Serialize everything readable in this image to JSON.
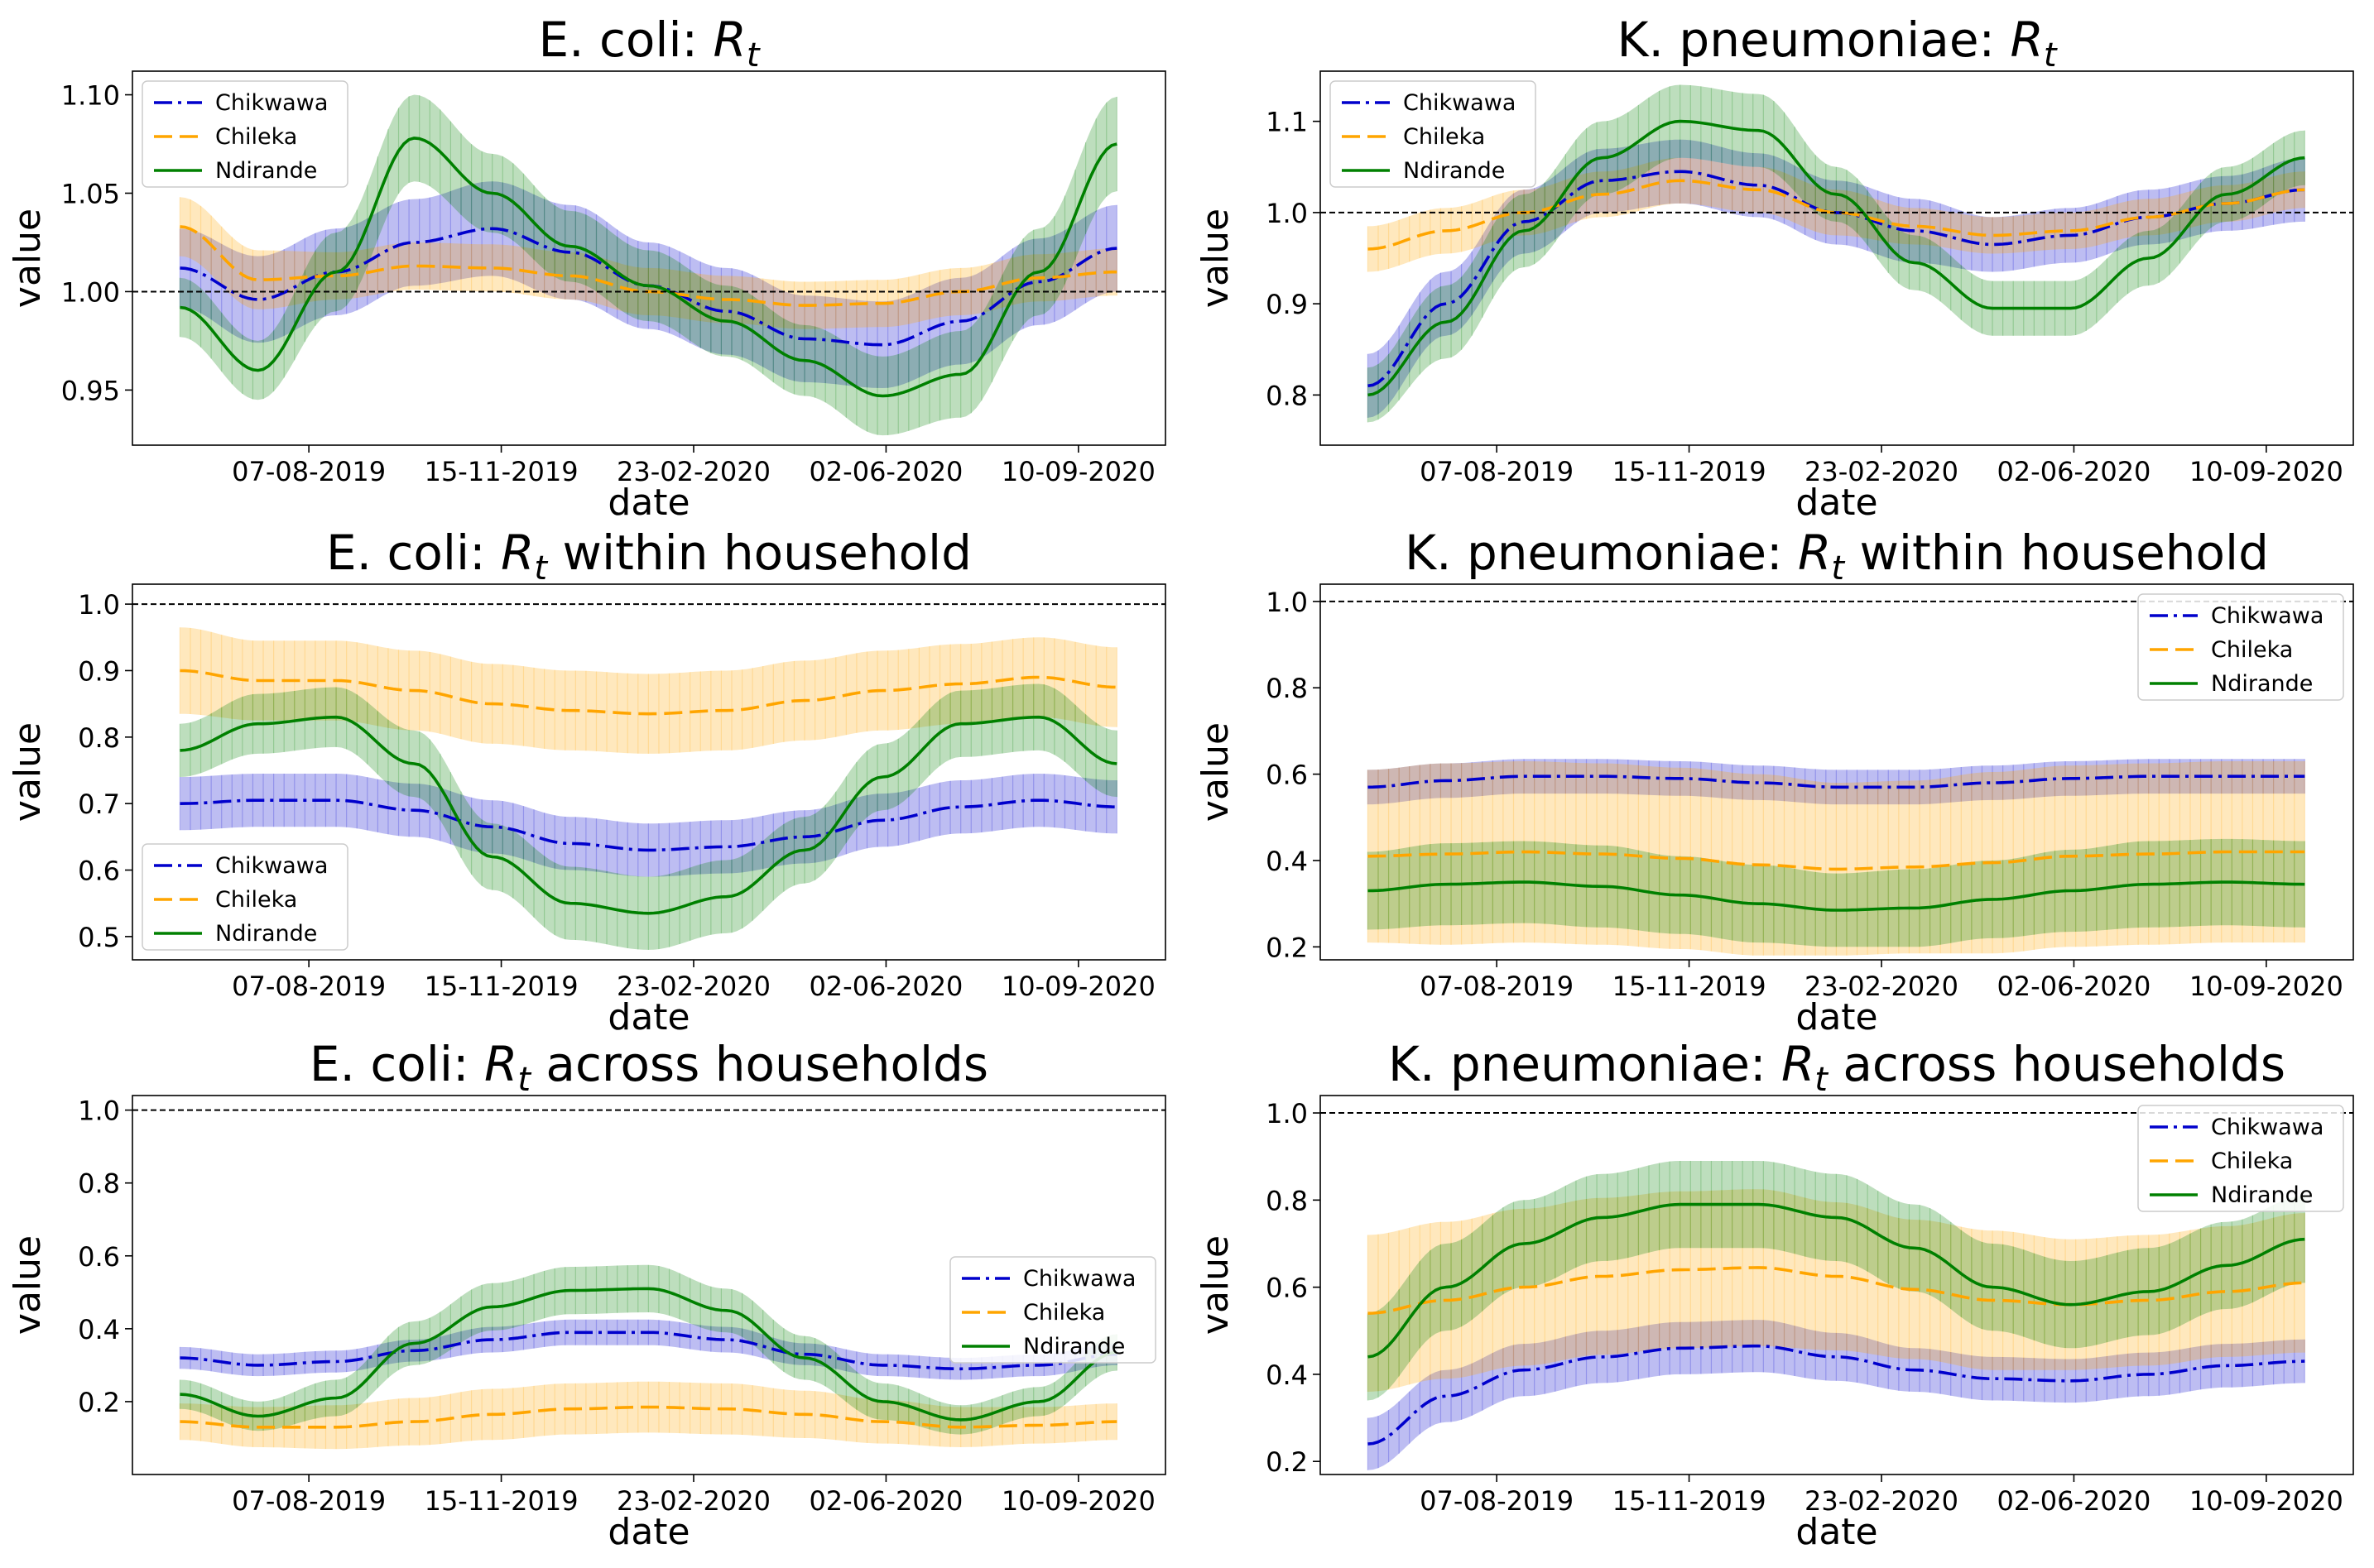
{
  "chart_data": [
    {
      "type": "line",
      "title": {
        "prefix": "E. coli: ",
        "var": "R",
        "sub": "t",
        "suffix": ""
      },
      "xlabel": "date",
      "ylabel": "value",
      "x_ticks": [
        "07-08-2019",
        "15-11-2019",
        "23-02-2020",
        "02-06-2020",
        "10-09-2020"
      ],
      "x_start": "2019-06-01",
      "x_end": "2020-09-30",
      "ylim": [
        0.922,
        1.112
      ],
      "y_ticks": [
        0.95,
        1.0,
        1.05,
        1.1
      ],
      "reference_line": 1.0,
      "legend_loc": "upper-left",
      "series": [
        {
          "name": "Chikwawa",
          "color": "#0000cc",
          "dash": "dashdot",
          "values": [
            1.012,
            0.996,
            1.01,
            1.025,
            1.032,
            1.02,
            1.003,
            0.99,
            0.976,
            0.973,
            0.985,
            1.005,
            1.022
          ],
          "band": [
            0.02,
            0.022,
            0.022,
            0.022,
            0.024,
            0.024,
            0.022,
            0.022,
            0.022,
            0.022,
            0.022,
            0.022,
            0.022
          ]
        },
        {
          "name": "Chileka",
          "color": "#ffa500",
          "dash": "dashed",
          "values": [
            1.033,
            1.006,
            1.008,
            1.013,
            1.012,
            1.008,
            1.0,
            0.996,
            0.993,
            0.994,
            1.0,
            1.007,
            1.01
          ],
          "band": [
            0.015,
            0.015,
            0.012,
            0.012,
            0.012,
            0.012,
            0.012,
            0.012,
            0.012,
            0.012,
            0.012,
            0.012,
            0.012
          ]
        },
        {
          "name": "Ndirande",
          "color": "#008000",
          "dash": "solid",
          "values": [
            0.992,
            0.96,
            1.01,
            1.078,
            1.05,
            1.023,
            1.003,
            0.985,
            0.965,
            0.947,
            0.958,
            1.01,
            1.075
          ],
          "band": [
            0.015,
            0.015,
            0.02,
            0.022,
            0.02,
            0.018,
            0.018,
            0.018,
            0.018,
            0.02,
            0.022,
            0.022,
            0.024
          ]
        }
      ]
    },
    {
      "type": "line",
      "title": {
        "prefix": "K. pneumoniae: ",
        "var": "R",
        "sub": "t",
        "suffix": ""
      },
      "xlabel": "date",
      "ylabel": "value",
      "x_ticks": [
        "07-08-2019",
        "15-11-2019",
        "23-02-2020",
        "02-06-2020",
        "10-09-2020"
      ],
      "x_start": "2019-06-01",
      "x_end": "2020-09-30",
      "ylim": [
        0.745,
        1.155
      ],
      "y_ticks": [
        0.8,
        0.9,
        1.0,
        1.1
      ],
      "reference_line": 1.0,
      "legend_loc": "upper-left",
      "series": [
        {
          "name": "Chikwawa",
          "color": "#0000cc",
          "dash": "dashdot",
          "values": [
            0.81,
            0.9,
            0.99,
            1.035,
            1.045,
            1.03,
            1.0,
            0.98,
            0.965,
            0.975,
            0.995,
            1.01,
            1.025
          ],
          "band": [
            0.035,
            0.035,
            0.035,
            0.035,
            0.035,
            0.035,
            0.035,
            0.035,
            0.03,
            0.03,
            0.03,
            0.03,
            0.035
          ]
        },
        {
          "name": "Chileka",
          "color": "#ffa500",
          "dash": "dashed",
          "values": [
            0.96,
            0.98,
            1.0,
            1.02,
            1.035,
            1.025,
            1.0,
            0.985,
            0.975,
            0.98,
            0.995,
            1.01,
            1.025
          ],
          "band": [
            0.025,
            0.025,
            0.025,
            0.025,
            0.025,
            0.025,
            0.025,
            0.02,
            0.02,
            0.02,
            0.02,
            0.02,
            0.02
          ]
        },
        {
          "name": "Ndirande",
          "color": "#008000",
          "dash": "solid",
          "values": [
            0.8,
            0.88,
            0.98,
            1.06,
            1.1,
            1.09,
            1.02,
            0.945,
            0.895,
            0.895,
            0.95,
            1.02,
            1.06
          ],
          "band": [
            0.03,
            0.04,
            0.04,
            0.04,
            0.04,
            0.04,
            0.03,
            0.03,
            0.03,
            0.03,
            0.03,
            0.03,
            0.03
          ]
        }
      ]
    },
    {
      "type": "line",
      "title": {
        "prefix": "E. coli: ",
        "var": "R",
        "sub": "t",
        "suffix": " within household"
      },
      "xlabel": "date",
      "ylabel": "value",
      "x_ticks": [
        "07-08-2019",
        "15-11-2019",
        "23-02-2020",
        "02-06-2020",
        "10-09-2020"
      ],
      "x_start": "2019-06-01",
      "x_end": "2020-09-30",
      "ylim": [
        0.465,
        1.03
      ],
      "y_ticks": [
        0.5,
        0.6,
        0.7,
        0.8,
        0.9,
        1.0
      ],
      "reference_line": 1.0,
      "legend_loc": "lower-left",
      "series": [
        {
          "name": "Chikwawa",
          "color": "#0000cc",
          "dash": "dashdot",
          "values": [
            0.7,
            0.705,
            0.705,
            0.69,
            0.665,
            0.64,
            0.63,
            0.635,
            0.65,
            0.675,
            0.695,
            0.705,
            0.695
          ],
          "band": [
            0.04,
            0.04,
            0.04,
            0.04,
            0.04,
            0.04,
            0.04,
            0.04,
            0.04,
            0.04,
            0.04,
            0.04,
            0.04
          ]
        },
        {
          "name": "Chileka",
          "color": "#ffa500",
          "dash": "dashed",
          "values": [
            0.9,
            0.885,
            0.885,
            0.87,
            0.85,
            0.84,
            0.835,
            0.84,
            0.855,
            0.87,
            0.88,
            0.89,
            0.875
          ],
          "band": [
            0.065,
            0.06,
            0.06,
            0.06,
            0.06,
            0.06,
            0.06,
            0.06,
            0.06,
            0.06,
            0.06,
            0.06,
            0.06
          ]
        },
        {
          "name": "Ndirande",
          "color": "#008000",
          "dash": "solid",
          "values": [
            0.78,
            0.82,
            0.83,
            0.76,
            0.62,
            0.55,
            0.535,
            0.56,
            0.63,
            0.74,
            0.82,
            0.83,
            0.76
          ],
          "band": [
            0.04,
            0.045,
            0.045,
            0.05,
            0.05,
            0.055,
            0.055,
            0.055,
            0.05,
            0.05,
            0.05,
            0.05,
            0.05
          ]
        }
      ]
    },
    {
      "type": "line",
      "title": {
        "prefix": "K. pneumoniae: ",
        "var": "R",
        "sub": "t",
        "suffix": " within household"
      },
      "xlabel": "date",
      "ylabel": "value",
      "x_ticks": [
        "07-08-2019",
        "15-11-2019",
        "23-02-2020",
        "02-06-2020",
        "10-09-2020"
      ],
      "x_start": "2019-06-01",
      "x_end": "2020-09-30",
      "ylim": [
        0.17,
        1.04
      ],
      "y_ticks": [
        0.2,
        0.4,
        0.6,
        0.8,
        1.0
      ],
      "reference_line": 1.0,
      "legend_loc": "upper-right",
      "series": [
        {
          "name": "Chikwawa",
          "color": "#0000cc",
          "dash": "dashdot",
          "values": [
            0.57,
            0.585,
            0.595,
            0.595,
            0.59,
            0.58,
            0.57,
            0.57,
            0.58,
            0.59,
            0.595,
            0.595,
            0.595
          ],
          "band": [
            0.04,
            0.04,
            0.04,
            0.04,
            0.04,
            0.04,
            0.04,
            0.04,
            0.04,
            0.04,
            0.04,
            0.04,
            0.04
          ]
        },
        {
          "name": "Chileka",
          "color": "#ffa500",
          "dash": "dashed",
          "values": [
            0.41,
            0.415,
            0.42,
            0.415,
            0.405,
            0.39,
            0.38,
            0.385,
            0.395,
            0.41,
            0.415,
            0.42,
            0.42
          ],
          "band": [
            0.2,
            0.21,
            0.21,
            0.21,
            0.21,
            0.21,
            0.2,
            0.2,
            0.21,
            0.21,
            0.21,
            0.21,
            0.21
          ]
        },
        {
          "name": "Ndirande",
          "color": "#008000",
          "dash": "solid",
          "values": [
            0.33,
            0.345,
            0.35,
            0.34,
            0.32,
            0.3,
            0.285,
            0.29,
            0.31,
            0.33,
            0.345,
            0.35,
            0.345
          ],
          "band": [
            0.09,
            0.095,
            0.095,
            0.095,
            0.09,
            0.09,
            0.085,
            0.09,
            0.09,
            0.095,
            0.1,
            0.1,
            0.1
          ]
        }
      ]
    },
    {
      "type": "line",
      "title": {
        "prefix": "E. coli: ",
        "var": "R",
        "sub": "t",
        "suffix": " across households"
      },
      "xlabel": "date",
      "ylabel": "value",
      "x_ticks": [
        "07-08-2019",
        "15-11-2019",
        "23-02-2020",
        "02-06-2020",
        "10-09-2020"
      ],
      "x_start": "2019-06-01",
      "x_end": "2020-09-30",
      "ylim": [
        0.0,
        1.04
      ],
      "y_ticks": [
        0.2,
        0.4,
        0.6,
        0.8,
        1.0
      ],
      "reference_line": 1.0,
      "legend_loc": "right",
      "series": [
        {
          "name": "Chikwawa",
          "color": "#0000cc",
          "dash": "dashdot",
          "values": [
            0.32,
            0.3,
            0.31,
            0.34,
            0.37,
            0.39,
            0.39,
            0.37,
            0.33,
            0.3,
            0.29,
            0.3,
            0.33
          ],
          "band": [
            0.03,
            0.03,
            0.03,
            0.03,
            0.035,
            0.035,
            0.035,
            0.035,
            0.03,
            0.03,
            0.03,
            0.03,
            0.03
          ]
        },
        {
          "name": "Chileka",
          "color": "#ffa500",
          "dash": "dashed",
          "values": [
            0.145,
            0.13,
            0.13,
            0.145,
            0.165,
            0.18,
            0.185,
            0.18,
            0.165,
            0.145,
            0.13,
            0.135,
            0.145
          ],
          "band": [
            0.05,
            0.055,
            0.06,
            0.065,
            0.07,
            0.07,
            0.07,
            0.07,
            0.065,
            0.06,
            0.055,
            0.05,
            0.05
          ]
        },
        {
          "name": "Ndirande",
          "color": "#008000",
          "dash": "solid",
          "values": [
            0.22,
            0.16,
            0.21,
            0.36,
            0.46,
            0.505,
            0.51,
            0.45,
            0.32,
            0.2,
            0.15,
            0.2,
            0.335
          ],
          "band": [
            0.04,
            0.04,
            0.05,
            0.06,
            0.065,
            0.065,
            0.065,
            0.06,
            0.06,
            0.05,
            0.04,
            0.04,
            0.05
          ]
        }
      ]
    },
    {
      "type": "line",
      "title": {
        "prefix": "K. pneumoniae: ",
        "var": "R",
        "sub": "t",
        "suffix": " across households"
      },
      "xlabel": "date",
      "ylabel": "value",
      "x_ticks": [
        "07-08-2019",
        "15-11-2019",
        "23-02-2020",
        "02-06-2020",
        "10-09-2020"
      ],
      "x_start": "2019-06-01",
      "x_end": "2020-09-30",
      "ylim": [
        0.17,
        1.04
      ],
      "y_ticks": [
        0.2,
        0.4,
        0.6,
        0.8,
        1.0
      ],
      "reference_line": 1.0,
      "legend_loc": "upper-right",
      "series": [
        {
          "name": "Chikwawa",
          "color": "#0000cc",
          "dash": "dashdot",
          "values": [
            0.24,
            0.35,
            0.41,
            0.44,
            0.46,
            0.465,
            0.44,
            0.41,
            0.39,
            0.385,
            0.4,
            0.42,
            0.43
          ],
          "band": [
            0.06,
            0.06,
            0.06,
            0.06,
            0.06,
            0.06,
            0.055,
            0.05,
            0.05,
            0.05,
            0.05,
            0.05,
            0.05
          ]
        },
        {
          "name": "Chileka",
          "color": "#ffa500",
          "dash": "dashed",
          "values": [
            0.54,
            0.57,
            0.6,
            0.625,
            0.64,
            0.645,
            0.625,
            0.595,
            0.57,
            0.56,
            0.57,
            0.59,
            0.61
          ],
          "band": [
            0.18,
            0.18,
            0.18,
            0.18,
            0.18,
            0.18,
            0.17,
            0.16,
            0.16,
            0.15,
            0.15,
            0.15,
            0.16
          ]
        },
        {
          "name": "Ndirande",
          "color": "#008000",
          "dash": "solid",
          "values": [
            0.44,
            0.6,
            0.7,
            0.76,
            0.79,
            0.79,
            0.76,
            0.69,
            0.6,
            0.56,
            0.59,
            0.65,
            0.71
          ],
          "band": [
            0.1,
            0.1,
            0.1,
            0.1,
            0.1,
            0.1,
            0.1,
            0.1,
            0.1,
            0.1,
            0.1,
            0.1,
            0.1
          ]
        }
      ]
    }
  ]
}
